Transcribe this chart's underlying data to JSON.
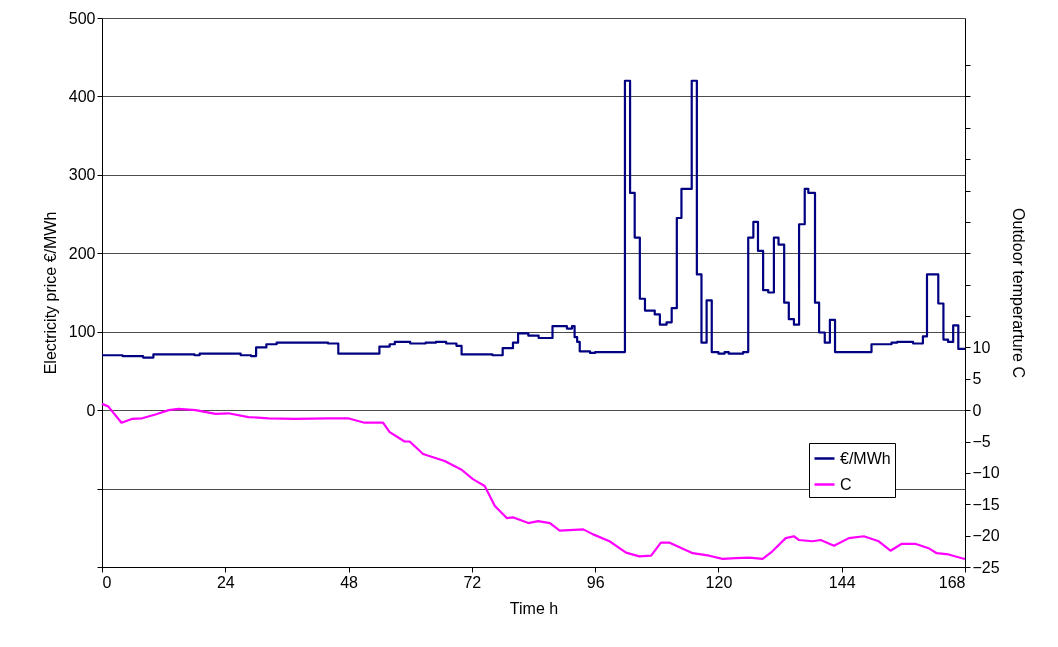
{
  "chart_data": {
    "type": "line",
    "xlabel": "Time h",
    "ylabel": "Electricity price €/MWh",
    "y2label": "Outdoor temperarture C",
    "xlim": [
      0,
      168
    ],
    "xticks": [
      0,
      24,
      48,
      72,
      96,
      120,
      144,
      168
    ],
    "ylim": [
      -200,
      500
    ],
    "yticks": [
      {
        "value": -200,
        "label": null
      },
      {
        "value": -100,
        "label": null
      },
      0,
      100,
      200,
      300,
      400,
      500
    ],
    "y2lim": [
      -25,
      62.5
    ],
    "y2ticks": [
      -25,
      -20,
      -15,
      -10,
      -5,
      0,
      5,
      10,
      {
        "value": 15,
        "label": null
      },
      {
        "value": 20,
        "label": null
      },
      {
        "value": 25,
        "label": null
      },
      {
        "value": 30,
        "label": null
      },
      {
        "value": 35,
        "label": null
      },
      {
        "value": 40,
        "label": null
      },
      {
        "value": 45,
        "label": null
      },
      {
        "value": 50,
        "label": null
      },
      {
        "value": 55,
        "label": null
      }
    ],
    "grid": "y",
    "legend": "bottom right",
    "marker": "none",
    "line_style": "solid",
    "series": [
      {
        "name": "€/MWh",
        "type": "step",
        "color": "#000080",
        "x": [
          0,
          4,
          8,
          10,
          18,
          19,
          27,
          29,
          30,
          32,
          34,
          44,
          46,
          54,
          56,
          57,
          60,
          63,
          65,
          67,
          69,
          70,
          76,
          78,
          80,
          81,
          83,
          85,
          87.7,
          90.5,
          91.5,
          92,
          92.5,
          93,
          95,
          96,
          101.8,
          102.8,
          103.7,
          104.7,
          105.7,
          107.6,
          108.6,
          109.9,
          110.9,
          111.9,
          112.8,
          114.8,
          115.8,
          116.7,
          117.7,
          118.7,
          120,
          121.2,
          122,
          124.8,
          125.8,
          126.8,
          127.7,
          128.7,
          129.7,
          130.8,
          131.7,
          132.8,
          133.7,
          134.7,
          135.7,
          136.8,
          137.5,
          138.8,
          139.6,
          140.7,
          141.7,
          142.7,
          149.8,
          153.7,
          154.8,
          157.9,
          159.8,
          160.6,
          162.8,
          163.8,
          164.7,
          165.7,
          166.7,
          168
        ],
        "values": [
          70,
          69,
          67,
          71,
          70,
          72,
          70,
          69,
          80,
          84,
          86,
          85,
          72,
          81,
          84,
          87,
          85,
          86,
          87,
          85,
          82,
          71,
          70,
          79,
          86,
          98,
          95,
          92,
          107,
          104,
          107,
          93,
          87,
          75,
          73,
          74,
          420,
          277,
          220,
          142,
          127,
          122,
          109,
          112,
          130,
          245,
          282,
          420,
          173,
          86,
          140,
          74,
          72,
          74,
          72,
          74,
          220,
          240,
          203,
          153,
          150,
          220,
          211,
          137,
          116,
          109,
          237,
          282,
          277,
          137,
          99,
          86,
          115,
          74,
          84,
          86,
          87,
          85,
          94,
          173,
          136,
          90,
          87,
          108,
          78,
          78
        ]
      },
      {
        "name": "C",
        "type": "line",
        "color": "#ff00ff",
        "x": [
          0,
          1.2,
          3.8,
          5.8,
          7.8,
          10.4,
          13,
          14.9,
          18.2,
          22.1,
          24.6,
          28.5,
          32.4,
          37.6,
          44,
          47.9,
          51.1,
          54.7,
          56,
          58.9,
          59.9,
          62.5,
          66.7,
          70,
          72.2,
          74.5,
          76.5,
          78.8,
          80.1,
          83,
          84.9,
          87.2,
          89.1,
          93.7,
          95.6,
          98.8,
          102,
          104.6,
          106.9,
          108.8,
          110.4,
          115,
          118.2,
          120.8,
          123.4,
          126,
          128.6,
          130.5,
          133.1,
          134.7,
          135.7,
          138.3,
          139.9,
          142.5,
          145.4,
          148.3,
          151.2,
          153.5,
          155.7,
          158.3,
          160.9,
          162.5,
          164.8,
          167.4,
          168
        ],
        "values": [
          1.0,
          0.6,
          -2.0,
          -1.4,
          -1.3,
          -0.7,
          0,
          0.2,
          0,
          -0.6,
          -0.5,
          -1.1,
          -1.3,
          -1.4,
          -1.3,
          -1.3,
          -2.0,
          -2.0,
          -3.5,
          -5.0,
          -5.0,
          -7.0,
          -8.1,
          -9.5,
          -11.0,
          -12.1,
          -15.3,
          -17.2,
          -17.1,
          -18.0,
          -17.7,
          -18.0,
          -19.2,
          -19.0,
          -19.8,
          -20.9,
          -22.7,
          -23.3,
          -23.2,
          -21.1,
          -21.1,
          -22.8,
          -23.2,
          -23.7,
          -23.6,
          -23.5,
          -23.7,
          -22.5,
          -20.4,
          -20.1,
          -20.7,
          -20.9,
          -20.7,
          -21.6,
          -20.4,
          -20.1,
          -20.9,
          -22.4,
          -21.3,
          -21.3,
          -22.0,
          -22.8,
          -23.0,
          -23.6,
          -23.7
        ],
        "axis": "y2"
      }
    ]
  }
}
